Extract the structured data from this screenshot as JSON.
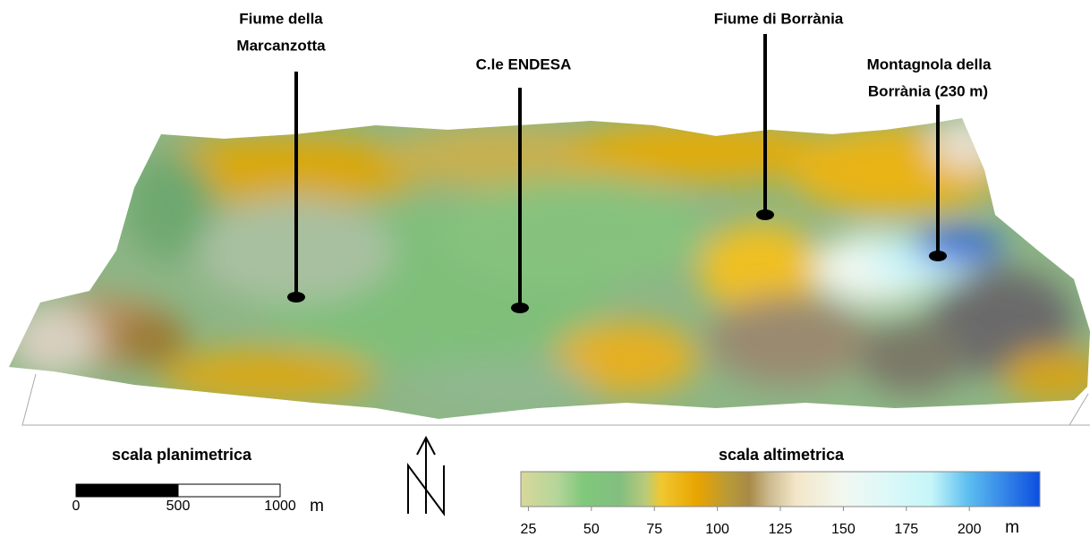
{
  "labels": [
    {
      "lines": [
        "Fiume della",
        "Marcanzotta"
      ]
    },
    {
      "lines": [
        "C.le ENDESA"
      ]
    },
    {
      "lines": [
        "Fiume di Borrània"
      ]
    },
    {
      "lines": [
        "Montagnola della",
        "Borrània (230 m)"
      ]
    }
  ],
  "planimetric_scale": {
    "title": "scala planimetrica",
    "ticks": [
      0,
      500,
      1000
    ],
    "unit": "m"
  },
  "altimetric_scale": {
    "title": "scala altimetrica",
    "range": [
      22,
      228
    ],
    "ticks": [
      25,
      50,
      75,
      100,
      125,
      150,
      175,
      200
    ],
    "unit": "m"
  }
}
